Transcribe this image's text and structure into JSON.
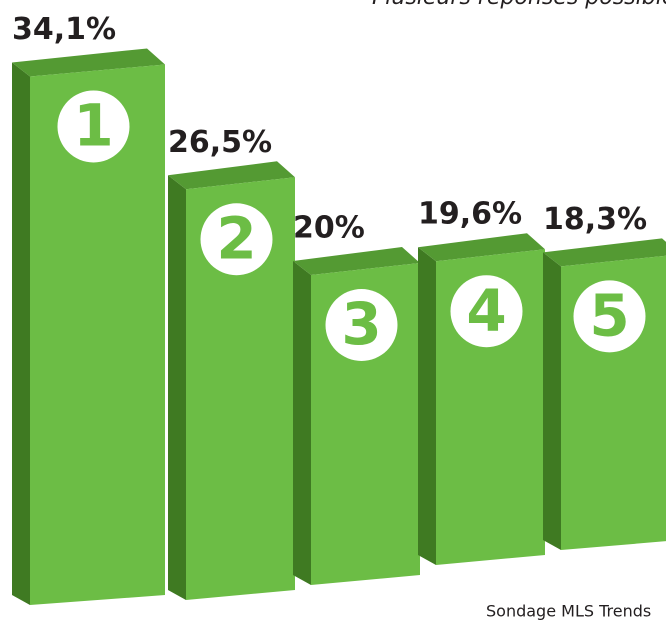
{
  "chart_data": {
    "type": "bar3d",
    "subtitle": "Plusieurs réponses possibles",
    "source": "Sondage MLS Trends",
    "categories": [
      "1",
      "2",
      "3",
      "4",
      "5"
    ],
    "values": [
      34.1,
      26.5,
      20,
      19.6,
      18.3
    ],
    "value_labels": [
      "34,1%",
      "26,5%",
      "20%",
      "19,6%",
      "18,3%"
    ],
    "color": "#6cbd45"
  }
}
